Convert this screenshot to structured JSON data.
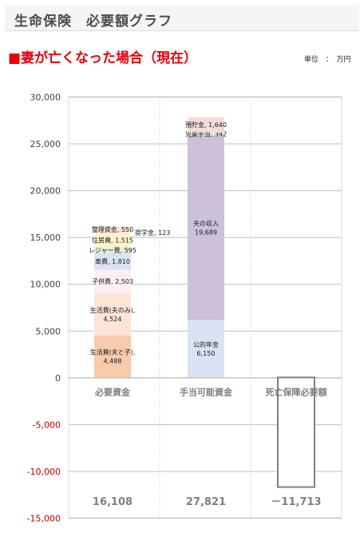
{
  "header": {
    "title": "生命保険　必要額グラフ"
  },
  "section": {
    "title": "■妻が亡くなった場合（現在）",
    "unit": "単位　：　万円"
  },
  "colors": {
    "accent_red": "#e8000b",
    "grid": "#bfbfbf",
    "axis_label": "#7f7f7f",
    "negative_tick": "#c00000"
  },
  "chart_data": {
    "type": "bar",
    "stacked": true,
    "categories": [
      "必要資金",
      "手当可能資金",
      "死亡保障必要額"
    ],
    "ylim": [
      -15000,
      30000
    ],
    "ytick_step": 5000,
    "yticks": [
      "30,000",
      "25,000",
      "20,000",
      "15,000",
      "10,000",
      "5,000",
      "0",
      "-5,000",
      "-10,000",
      "-15,000"
    ],
    "grid": true,
    "negative_tick_color": "#c00000",
    "bars": [
      {
        "category": "必要資金",
        "total_label": "16,108",
        "segments": [
          {
            "name": "生活費(夫と子)",
            "value": 4488,
            "label": "生活費(夫と子),\n4,488",
            "color": "#f8cbad"
          },
          {
            "name": "生活費(夫のみ)",
            "value": 4524,
            "label": "生活費(夫のみ),\n4,524",
            "color": "#fce4d6"
          },
          {
            "name": "子供費",
            "value": 2503,
            "label": "子供費, 2,503",
            "color": "#fdeef2"
          },
          {
            "name": "車費",
            "value": 1810,
            "label": "車費, 1,810",
            "color": "#dae3f3"
          },
          {
            "name": "レジャー費",
            "value": 595,
            "label": "レジャー費, 595",
            "color": "#e2f0d9"
          },
          {
            "name": "住居費",
            "value": 1515,
            "label": "住居費, 1,515",
            "color": "#fff2cc"
          },
          {
            "name": "奨学金",
            "value": 123,
            "label": "奨学金, 123",
            "color": "#fbe5d6"
          },
          {
            "name": "整理資金",
            "value": 550,
            "label": "整理資金, 550",
            "color": "#fce4d6"
          }
        ]
      },
      {
        "category": "手当可能資金",
        "total_label": "27,821",
        "segments": [
          {
            "name": "公的年金",
            "value": 6150,
            "label": "公的年金\n6,150",
            "color": "#dae3f3"
          },
          {
            "name": "夫の収入",
            "value": 19689,
            "label": "夫の収入\n19,689",
            "color": "#ccc0da"
          },
          {
            "name": "児童手当",
            "value": 342,
            "label": "児童手当, 342",
            "color": "#d9ead3"
          },
          {
            "name": "預貯金",
            "value": 1640,
            "label": "預貯金, 1,640",
            "color": "#f2dcdb"
          }
        ]
      },
      {
        "category": "死亡保障必要額",
        "total_label": "－11,713",
        "segments": [
          {
            "name": "死亡保障必要額",
            "value": -11713,
            "label": "",
            "color": "#ffffff",
            "outline": "#7f7f7f"
          }
        ]
      }
    ]
  }
}
